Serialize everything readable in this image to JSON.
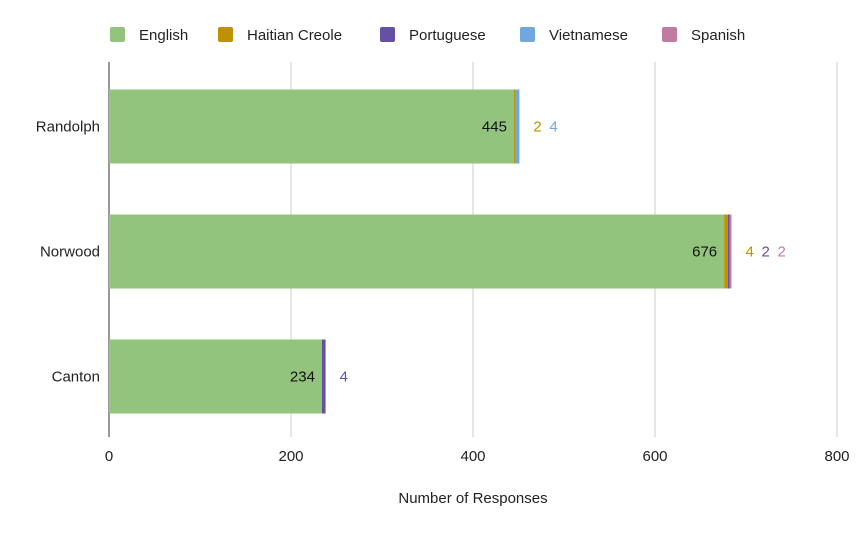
{
  "chart_data": {
    "type": "bar",
    "orientation": "horizontal",
    "stacked": true,
    "categories": [
      "Randolph",
      "Norwood",
      "Canton"
    ],
    "series": [
      {
        "name": "English",
        "color": "#93c47d",
        "values": [
          445,
          676,
          234
        ]
      },
      {
        "name": "Haitian Creole",
        "color": "#bf9000",
        "values": [
          2,
          4,
          0
        ]
      },
      {
        "name": "Portuguese",
        "color": "#674ea7",
        "values": [
          0,
          2,
          4
        ]
      },
      {
        "name": "Vietnamese",
        "color": "#6fa8dc",
        "values": [
          4,
          0,
          0
        ]
      },
      {
        "name": "Spanish",
        "color": "#c27ba0",
        "values": [
          0,
          2,
          0
        ]
      }
    ],
    "xlabel": "Number of Responses",
    "ylabel": "",
    "xlim": [
      0,
      800
    ],
    "xticks": [
      "0",
      "200",
      "400",
      "600",
      "800"
    ],
    "grid": true,
    "legend": "top"
  }
}
